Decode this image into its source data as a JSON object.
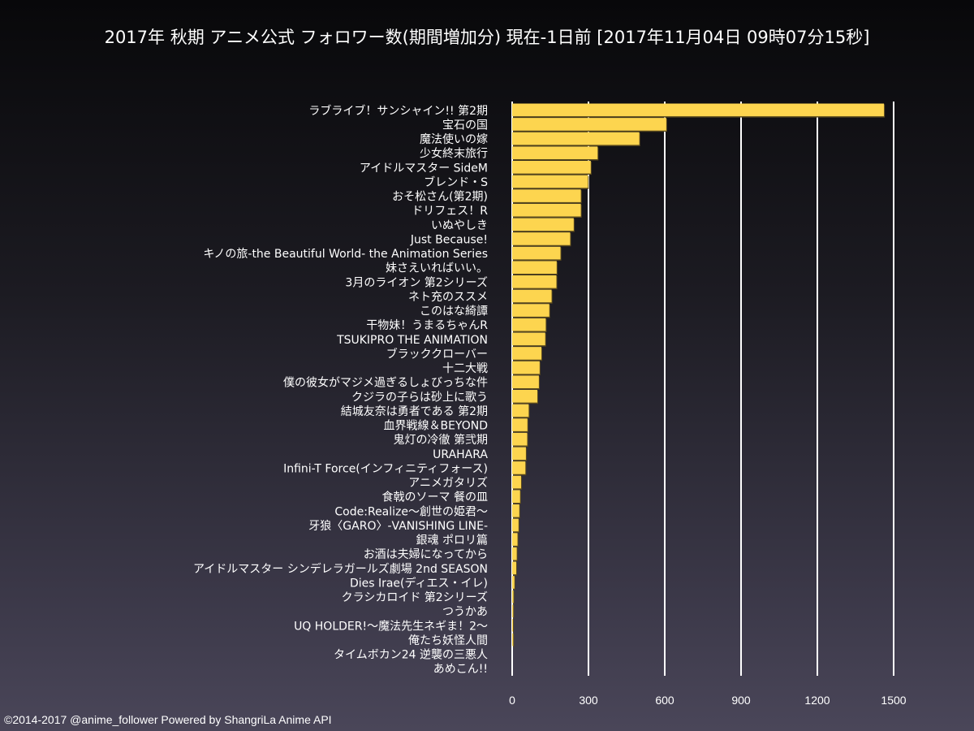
{
  "chart_data": {
    "type": "bar",
    "orientation": "horizontal",
    "title": "2017年 秋期 アニメ公式 フォロワー数(期間増加分) 現在-1日前 [2017年11月04日 09時07分15秒]",
    "xlabel": "",
    "ylabel": "",
    "xlim": [
      0,
      1500
    ],
    "xticks": [
      "0",
      "300",
      "600",
      "900",
      "1200",
      "1500"
    ],
    "grid": true,
    "bar_color": "#fdd54f",
    "categories": [
      "ラブライブ！サンシャイン!! 第2期",
      "宝石の国",
      "魔法使いの嫁",
      "少女終末旅行",
      "アイドルマスター SideM",
      "ブレンド・S",
      "おそ松さん(第2期)",
      "ドリフェス！R",
      "いぬやしき",
      "Just Because!",
      "キノの旅-the Beautiful World- the Animation Series",
      "妹さえいればいい。",
      "3月のライオン 第2シリーズ",
      "ネト充のススメ",
      "このはな綺譚",
      "干物妹！うまるちゃんR",
      "TSUKIPRO THE ANIMATION",
      "ブラッククローバー",
      "十二大戦",
      "僕の彼女がマジメ過ぎるしょびっちな件",
      "クジラの子らは砂上に歌う",
      "結城友奈は勇者である 第2期",
      "血界戦線＆BEYOND",
      "鬼灯の冷徹 第弐期",
      "URAHARA",
      "Infini-T Force(インフィニティフォース)",
      "アニメガタリズ",
      "食戟のソーマ 餐の皿",
      "Code:Realize〜創世の姫君〜",
      "牙狼〈GARO〉-VANISHING LINE-",
      "銀魂 ポロリ篇",
      "お酒は夫婦になってから",
      "アイドルマスター シンデレラガールズ劇場 2nd SEASON",
      "Dies Irae(ディエス・イレ)",
      "クラシカロイド 第2シリーズ",
      "つうかあ",
      "UQ HOLDER!〜魔法先生ネギま！2〜",
      "俺たち妖怪人間",
      "タイムボカン24 逆襲の三悪人",
      "あめこん!!"
    ],
    "values": [
      1462,
      606,
      500,
      336,
      309,
      298,
      270,
      270,
      242,
      228,
      190,
      175,
      174,
      155,
      146,
      132,
      130,
      115,
      108,
      105,
      99,
      65,
      60,
      59,
      54,
      52,
      35,
      31,
      28,
      25,
      21,
      18,
      16,
      9,
      5,
      4,
      3,
      4,
      0,
      0
    ]
  },
  "footer": {
    "credit": "©2014-2017 @anime_follower Powered by ShangriLa Anime API"
  }
}
